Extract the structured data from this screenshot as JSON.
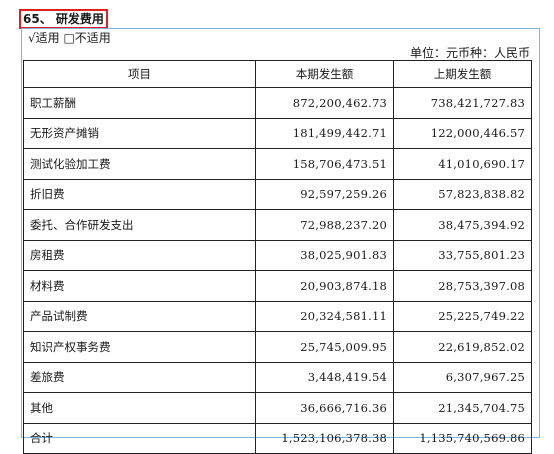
{
  "section": {
    "heading": "65、 研发费用",
    "applicability": "√适用 □不适用",
    "unit": "单位：元币种：人民币"
  },
  "table": {
    "headers": [
      "项目",
      "本期发生额",
      "上期发生额"
    ],
    "rows": [
      [
        "职工薪酬",
        "872,200,462.73",
        "738,421,727.83"
      ],
      [
        "无形资产摊销",
        "181,499,442.71",
        "122,000,446.57"
      ],
      [
        "测试化验加工费",
        "158,706,473.51",
        "41,010,690.17"
      ],
      [
        "折旧费",
        "92,597,259.26",
        "57,823,838.82"
      ],
      [
        "委托、合作研发支出",
        "72,988,237.20",
        "38,475,394.92"
      ],
      [
        "房租费",
        "38,025,901.83",
        "33,755,801.23"
      ],
      [
        "材料费",
        "20,903,874.18",
        "28,753,397.08"
      ],
      [
        "产品试制费",
        "20,324,581.11",
        "25,225,749.22"
      ],
      [
        "知识产权事务费",
        "25,745,009.95",
        "22,619,852.02"
      ],
      [
        "差旅费",
        "3,448,419.54",
        "6,307,967.25"
      ],
      [
        "其他",
        "36,666,716.36",
        "21,345,704.75"
      ],
      [
        "合计",
        "1,523,106,378.38",
        "1,135,740,569.86"
      ]
    ]
  }
}
